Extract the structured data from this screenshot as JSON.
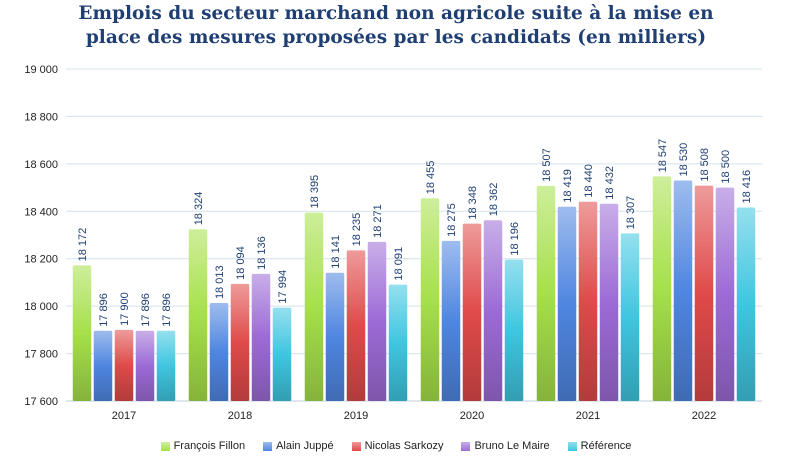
{
  "chart_data": {
    "type": "bar",
    "title_lines": [
      "Emplois du secteur marchand non agricole suite à la mise en",
      "place des mesures proposées par les candidats (en milliers)"
    ],
    "categories": [
      "2017",
      "2018",
      "2019",
      "2020",
      "2021",
      "2022"
    ],
    "ylim": [
      17600,
      19000
    ],
    "yticks": [
      17600,
      17800,
      18000,
      18200,
      18400,
      18600,
      18800,
      19000
    ],
    "ytick_labels": [
      "17 600",
      "17 800",
      "18 000",
      "18 200",
      "18 400",
      "18 600",
      "18 800",
      "19 000"
    ],
    "grid": true,
    "legend_position": "bottom",
    "series": [
      {
        "name": "François Fillon",
        "color": "#a6e04a",
        "values": [
          18172,
          18324,
          18395,
          18455,
          18507,
          18547
        ],
        "labels": [
          "18 172",
          "18 324",
          "18 395",
          "18 455",
          "18 507",
          "18 547"
        ]
      },
      {
        "name": "Alain Juppé",
        "color": "#4f86e0",
        "values": [
          17896,
          18013,
          18141,
          18275,
          18419,
          18530
        ],
        "labels": [
          "17 896",
          "18 013",
          "18 141",
          "18 275",
          "18 419",
          "18 530"
        ]
      },
      {
        "name": "Nicolas Sarkozy",
        "color": "#e04a4a",
        "values": [
          17900,
          18094,
          18235,
          18348,
          18440,
          18508
        ],
        "labels": [
          "17 900",
          "18 094",
          "18 235",
          "18 348",
          "18 440",
          "18 508"
        ]
      },
      {
        "name": "Bruno Le Maire",
        "color": "#9c6bd6",
        "values": [
          17896,
          18136,
          18271,
          18362,
          18432,
          18500
        ],
        "labels": [
          "17 896",
          "18 136",
          "18 271",
          "18 362",
          "18 432",
          "18 500"
        ]
      },
      {
        "name": "Référence",
        "color": "#3fc6e0",
        "values": [
          17896,
          17994,
          18091,
          18196,
          18307,
          18416
        ],
        "labels": [
          "17 896",
          "17 994",
          "18 091",
          "18 196",
          "18 307",
          "18 416"
        ]
      }
    ]
  }
}
